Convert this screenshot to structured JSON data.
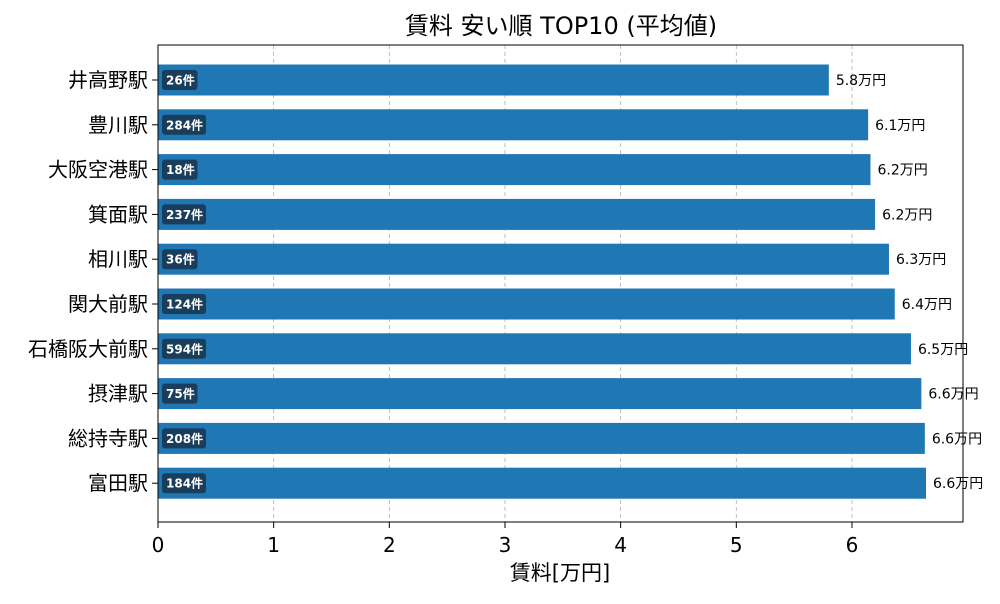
{
  "chart_data": {
    "type": "bar",
    "orientation": "horizontal",
    "title": "賃料 安い順 TOP10 (平均値)",
    "xlabel": "賃料[万円]",
    "ylabel": "",
    "xlim": [
      0,
      6.96
    ],
    "xticks": [
      0,
      1,
      2,
      3,
      4,
      5,
      6
    ],
    "grid": "x-dashed",
    "bar_color": "#1f77b4",
    "count_badge_color": "#1a3d5c",
    "value_suffix": "万円",
    "count_suffix": "件",
    "categories": [
      "井高野駅",
      "豊川駅",
      "大阪空港駅",
      "箕面駅",
      "相川駅",
      "関大前駅",
      "石橋阪大前駅",
      "摂津駅",
      "総持寺駅",
      "富田駅"
    ],
    "values": [
      5.8,
      6.14,
      6.16,
      6.2,
      6.32,
      6.37,
      6.51,
      6.6,
      6.63,
      6.64
    ],
    "value_labels": [
      "5.8万円",
      "6.1万円",
      "6.2万円",
      "6.2万円",
      "6.3万円",
      "6.4万円",
      "6.5万円",
      "6.6万円",
      "6.6万円",
      "6.6万円"
    ],
    "counts": [
      26,
      284,
      18,
      237,
      36,
      124,
      594,
      75,
      208,
      184
    ],
    "count_labels": [
      "26件",
      "284件",
      "18件",
      "237件",
      "36件",
      "124件",
      "594件",
      "75件",
      "208件",
      "184件"
    ]
  }
}
